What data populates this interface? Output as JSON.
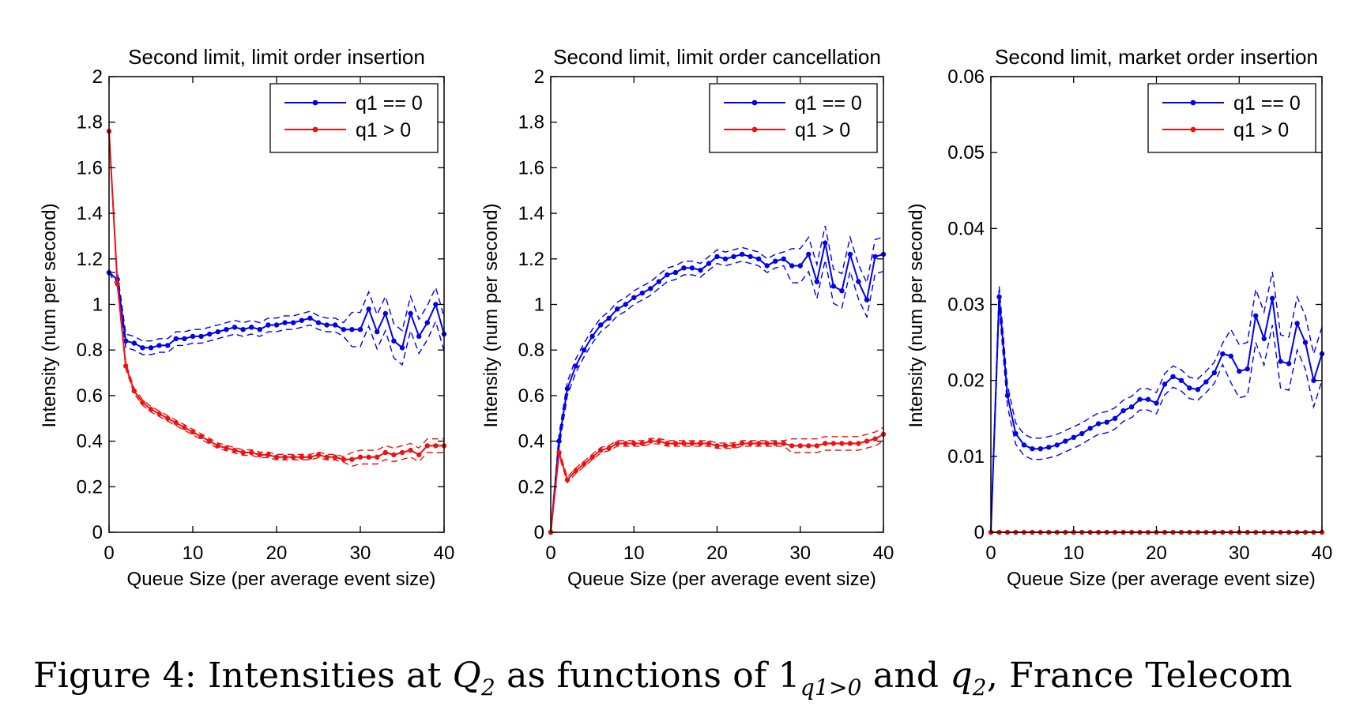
{
  "figure": {
    "caption": {
      "prefix": "Figure 4: Intensities at ",
      "q": "Q",
      "q_sub": "2",
      "mid1": " as functions of ",
      "one": "1",
      "one_sub": "q1>0",
      "mid2": " and ",
      "q2": "q",
      "q2_sub": "2",
      "suffix": ", France Telecom"
    },
    "colors": {
      "blue": "#0000ee",
      "red": "#ee1111",
      "axis": "#000000"
    }
  },
  "chart_data": [
    {
      "type": "line",
      "title": "Second limit, limit order insertion",
      "xlabel": "Queue Size (per average event size)",
      "ylabel": "Intensity (num per second)",
      "xlim": [
        0,
        40
      ],
      "ylim": [
        0,
        2
      ],
      "xticks": [
        "0",
        "10",
        "20",
        "30",
        "40"
      ],
      "yticks": [
        "0",
        "0.2",
        "0.4",
        "0.6",
        "0.8",
        "1",
        "1.2",
        "1.4",
        "1.6",
        "1.8",
        "2"
      ],
      "legend": {
        "position": "top-right",
        "entries": [
          "q1 == 0",
          "q1 > 0"
        ]
      },
      "x": [
        0,
        1,
        2,
        3,
        4,
        5,
        6,
        7,
        8,
        9,
        10,
        11,
        12,
        13,
        14,
        15,
        16,
        17,
        18,
        19,
        20,
        21,
        22,
        23,
        24,
        25,
        26,
        27,
        28,
        29,
        30,
        31,
        32,
        33,
        34,
        35,
        36,
        37,
        38,
        39,
        40
      ],
      "series": [
        {
          "name": "q1 == 0",
          "color": "#0000ee",
          "band": 0.03,
          "values": [
            1.14,
            1.11,
            0.84,
            0.83,
            0.81,
            0.81,
            0.82,
            0.82,
            0.85,
            0.85,
            0.86,
            0.86,
            0.87,
            0.88,
            0.89,
            0.9,
            0.89,
            0.9,
            0.89,
            0.91,
            0.91,
            0.92,
            0.92,
            0.93,
            0.94,
            0.92,
            0.91,
            0.91,
            0.89,
            0.89,
            0.89,
            0.98,
            0.88,
            0.96,
            0.84,
            0.81,
            0.96,
            0.86,
            0.92,
            1.0,
            0.87
          ]
        },
        {
          "name": "q1 > 0",
          "color": "#ee1111",
          "band": 0.012,
          "values": [
            1.76,
            1.09,
            0.73,
            0.62,
            0.57,
            0.54,
            0.52,
            0.5,
            0.48,
            0.46,
            0.44,
            0.42,
            0.4,
            0.38,
            0.37,
            0.36,
            0.35,
            0.35,
            0.34,
            0.34,
            0.33,
            0.33,
            0.33,
            0.33,
            0.33,
            0.34,
            0.33,
            0.33,
            0.32,
            0.32,
            0.33,
            0.33,
            0.33,
            0.35,
            0.34,
            0.35,
            0.36,
            0.34,
            0.38,
            0.38,
            0.38
          ]
        }
      ]
    },
    {
      "type": "line",
      "title": "Second limit, limit order cancellation",
      "xlabel": "Queue Size (per average event size)",
      "ylabel": "Intensity (num per second)",
      "xlim": [
        0,
        40
      ],
      "ylim": [
        0,
        2
      ],
      "xticks": [
        "0",
        "10",
        "20",
        "30",
        "40"
      ],
      "yticks": [
        "0",
        "0.2",
        "0.4",
        "0.6",
        "0.8",
        "1",
        "1.2",
        "1.4",
        "1.6",
        "1.8",
        "2"
      ],
      "legend": {
        "position": "top-right",
        "entries": [
          "q1 == 0",
          "q1 > 0"
        ]
      },
      "x": [
        0,
        1,
        2,
        3,
        4,
        5,
        6,
        7,
        8,
        9,
        10,
        11,
        12,
        13,
        14,
        15,
        16,
        17,
        18,
        19,
        20,
        21,
        22,
        23,
        24,
        25,
        26,
        27,
        28,
        29,
        30,
        31,
        32,
        33,
        34,
        35,
        36,
        37,
        38,
        39,
        40
      ],
      "series": [
        {
          "name": "q1 == 0",
          "color": "#0000ee",
          "band": 0.03,
          "values": [
            0.0,
            0.4,
            0.63,
            0.73,
            0.8,
            0.86,
            0.91,
            0.94,
            0.98,
            1.0,
            1.03,
            1.05,
            1.07,
            1.1,
            1.13,
            1.14,
            1.16,
            1.16,
            1.15,
            1.18,
            1.21,
            1.2,
            1.21,
            1.22,
            1.21,
            1.2,
            1.17,
            1.19,
            1.2,
            1.17,
            1.17,
            1.22,
            1.1,
            1.27,
            1.08,
            1.06,
            1.22,
            1.1,
            1.02,
            1.21,
            1.22
          ]
        },
        {
          "name": "q1 > 0",
          "color": "#ee1111",
          "band": 0.012,
          "values": [
            0.0,
            0.35,
            0.23,
            0.27,
            0.3,
            0.33,
            0.36,
            0.37,
            0.39,
            0.39,
            0.39,
            0.39,
            0.4,
            0.4,
            0.39,
            0.39,
            0.39,
            0.39,
            0.39,
            0.39,
            0.38,
            0.38,
            0.38,
            0.39,
            0.39,
            0.39,
            0.39,
            0.39,
            0.39,
            0.38,
            0.38,
            0.38,
            0.38,
            0.39,
            0.39,
            0.39,
            0.39,
            0.39,
            0.4,
            0.41,
            0.43
          ]
        }
      ]
    },
    {
      "type": "line",
      "title": "Second limit, market order insertion",
      "xlabel": "Queue Size (per average event size)",
      "ylabel": "Intensity (num per second)",
      "xlim": [
        0,
        40
      ],
      "ylim": [
        0,
        0.06
      ],
      "xticks": [
        "0",
        "10",
        "20",
        "30",
        "40"
      ],
      "yticks": [
        "0",
        "0.01",
        "0.02",
        "0.03",
        "0.04",
        "0.05",
        "0.06"
      ],
      "legend": {
        "position": "top-right",
        "entries": [
          "q1 == 0",
          "q1 > 0"
        ]
      },
      "x": [
        0,
        1,
        2,
        3,
        4,
        5,
        6,
        7,
        8,
        9,
        10,
        11,
        12,
        13,
        14,
        15,
        16,
        17,
        18,
        19,
        20,
        21,
        22,
        23,
        24,
        25,
        26,
        27,
        28,
        29,
        30,
        31,
        32,
        33,
        34,
        35,
        36,
        37,
        38,
        39,
        40
      ],
      "series": [
        {
          "name": "q1 == 0",
          "color": "#0000ee",
          "band": 0.0014,
          "values": [
            0.0,
            0.031,
            0.018,
            0.013,
            0.0115,
            0.011,
            0.011,
            0.0112,
            0.0115,
            0.012,
            0.0125,
            0.013,
            0.0137,
            0.0143,
            0.0145,
            0.015,
            0.016,
            0.0165,
            0.0175,
            0.0175,
            0.017,
            0.0195,
            0.0205,
            0.02,
            0.019,
            0.0188,
            0.0198,
            0.021,
            0.0235,
            0.0232,
            0.0212,
            0.0215,
            0.0285,
            0.0255,
            0.0308,
            0.0225,
            0.0222,
            0.0275,
            0.025,
            0.02,
            0.0235
          ]
        },
        {
          "name": "q1 > 0",
          "color": "#ee1111",
          "band": 0,
          "values": [
            0,
            0,
            0,
            0,
            0,
            0,
            0,
            0,
            0,
            0,
            0,
            0,
            0,
            0,
            0,
            0,
            0,
            0,
            0,
            0,
            0,
            0,
            0,
            0,
            0,
            0,
            0,
            0,
            0,
            0,
            0,
            0,
            0,
            0,
            0,
            0,
            0,
            0,
            0,
            0,
            0
          ]
        }
      ]
    }
  ]
}
